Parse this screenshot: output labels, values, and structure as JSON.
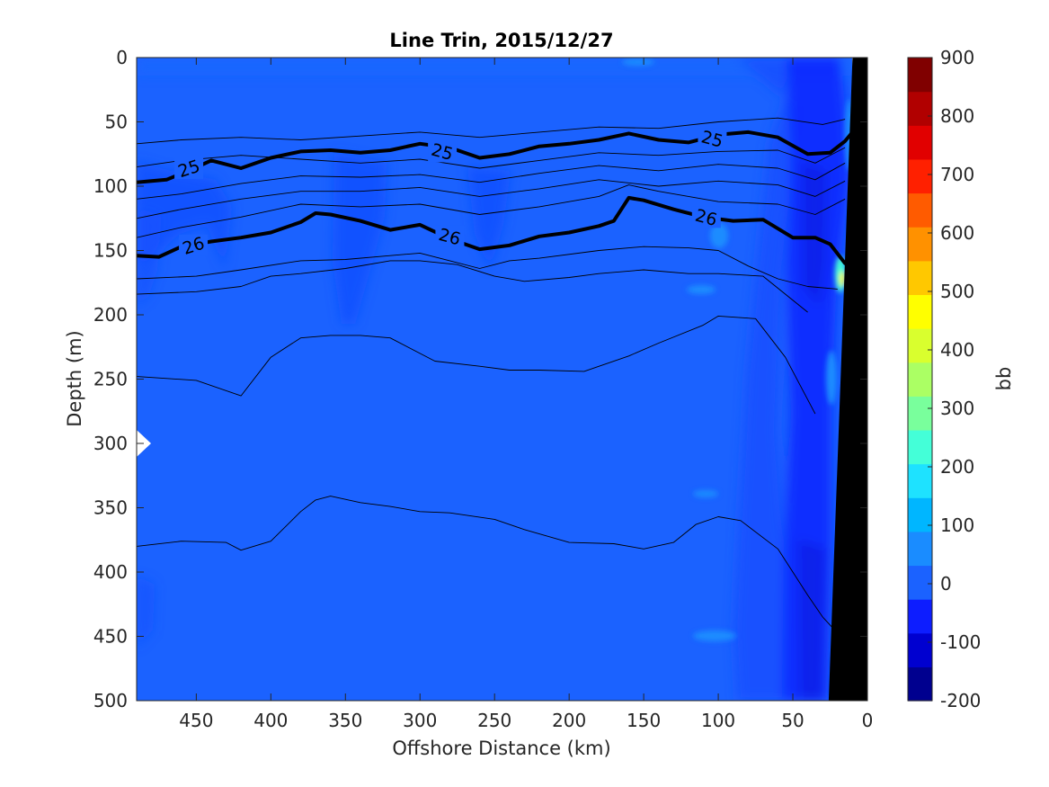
{
  "chart_data": {
    "type": "heatmap",
    "title": "Line Trin, 2015/12/27",
    "xlabel": "Offshore Distance (km)",
    "ylabel": "Depth (m)",
    "xlim": [
      490,
      0
    ],
    "ylim": [
      0,
      500
    ],
    "x_reversed": true,
    "y_reversed": true,
    "xticks": [
      450,
      400,
      350,
      300,
      250,
      200,
      150,
      100,
      50,
      0
    ],
    "yticks": [
      0,
      50,
      100,
      150,
      200,
      250,
      300,
      350,
      400,
      450,
      500
    ],
    "colorbar": {
      "label": "bb",
      "range": [
        -200,
        900
      ],
      "ticks": [
        900,
        800,
        700,
        600,
        500,
        400,
        300,
        200,
        100,
        0,
        -100,
        -200
      ],
      "colors": [
        "#00008f",
        "#0000d0",
        "#0d1dff",
        "#1b62ff",
        "#1a8cff",
        "#00b6ff",
        "#1ee2ff",
        "#44ffd8",
        "#79ff9c",
        "#abff64",
        "#d9ff2e",
        "#ffff00",
        "#ffc800",
        "#ff9100",
        "#ff5b00",
        "#ff2000",
        "#e10000",
        "#b10000",
        "#800000"
      ]
    },
    "background_level_color": "#1b62ff",
    "contours_labeled": [
      {
        "level": "25",
        "points": [
          [
            490,
            97
          ],
          [
            470,
            95
          ],
          [
            455,
            88
          ],
          [
            440,
            80
          ],
          [
            420,
            86
          ],
          [
            400,
            78
          ],
          [
            380,
            73
          ],
          [
            360,
            72
          ],
          [
            340,
            74
          ],
          [
            320,
            72
          ],
          [
            300,
            67
          ],
          [
            280,
            70
          ],
          [
            260,
            78
          ],
          [
            240,
            75
          ],
          [
            220,
            69
          ],
          [
            200,
            67
          ],
          [
            180,
            64
          ],
          [
            160,
            59
          ],
          [
            140,
            64
          ],
          [
            120,
            66
          ],
          [
            100,
            60
          ],
          [
            80,
            58
          ],
          [
            60,
            62
          ],
          [
            40,
            75
          ],
          [
            25,
            74
          ],
          [
            15,
            65
          ],
          [
            10,
            58
          ]
        ],
        "label_positions": [
          [
            455,
            86
          ],
          [
            285,
            73
          ],
          [
            104,
            63
          ]
        ]
      },
      {
        "level": "26",
        "points": [
          [
            490,
            154
          ],
          [
            475,
            155
          ],
          [
            460,
            147
          ],
          [
            440,
            143
          ],
          [
            420,
            140
          ],
          [
            400,
            136
          ],
          [
            380,
            128
          ],
          [
            370,
            121
          ],
          [
            360,
            122
          ],
          [
            340,
            127
          ],
          [
            320,
            134
          ],
          [
            300,
            130
          ],
          [
            280,
            141
          ],
          [
            260,
            149
          ],
          [
            240,
            146
          ],
          [
            220,
            139
          ],
          [
            200,
            136
          ],
          [
            180,
            131
          ],
          [
            170,
            127
          ],
          [
            160,
            109
          ],
          [
            150,
            111
          ],
          [
            130,
            118
          ],
          [
            110,
            124
          ],
          [
            90,
            127
          ],
          [
            70,
            126
          ],
          [
            50,
            140
          ],
          [
            35,
            140
          ],
          [
            25,
            145
          ],
          [
            15,
            160
          ]
        ],
        "label_positions": [
          [
            452,
            146
          ],
          [
            280,
            139
          ],
          [
            108,
            124
          ]
        ]
      }
    ],
    "contours_thin": [
      [
        [
          490,
          67
        ],
        [
          460,
          64
        ],
        [
          420,
          62
        ],
        [
          380,
          64
        ],
        [
          340,
          61
        ],
        [
          300,
          58
        ],
        [
          260,
          62
        ],
        [
          220,
          58
        ],
        [
          180,
          54
        ],
        [
          140,
          55
        ],
        [
          100,
          50
        ],
        [
          60,
          47
        ],
        [
          30,
          52
        ],
        [
          15,
          48
        ]
      ],
      [
        [
          490,
          85
        ],
        [
          460,
          80
        ],
        [
          420,
          76
        ],
        [
          380,
          79
        ],
        [
          340,
          82
        ],
        [
          300,
          79
        ],
        [
          260,
          86
        ],
        [
          220,
          80
        ],
        [
          180,
          74
        ],
        [
          140,
          76
        ],
        [
          100,
          73
        ],
        [
          60,
          72
        ],
        [
          35,
          82
        ],
        [
          15,
          70
        ]
      ],
      [
        [
          490,
          110
        ],
        [
          460,
          106
        ],
        [
          420,
          98
        ],
        [
          380,
          92
        ],
        [
          340,
          93
        ],
        [
          300,
          91
        ],
        [
          260,
          97
        ],
        [
          220,
          90
        ],
        [
          180,
          84
        ],
        [
          140,
          88
        ],
        [
          100,
          83
        ],
        [
          60,
          86
        ],
        [
          35,
          95
        ],
        [
          15,
          82
        ]
      ],
      [
        [
          490,
          125
        ],
        [
          460,
          118
        ],
        [
          420,
          110
        ],
        [
          380,
          104
        ],
        [
          340,
          104
        ],
        [
          300,
          101
        ],
        [
          260,
          108
        ],
        [
          220,
          102
        ],
        [
          180,
          95
        ],
        [
          140,
          100
        ],
        [
          100,
          96
        ],
        [
          60,
          99
        ],
        [
          35,
          108
        ],
        [
          15,
          96
        ]
      ],
      [
        [
          490,
          140
        ],
        [
          460,
          132
        ],
        [
          420,
          124
        ],
        [
          380,
          114
        ],
        [
          340,
          116
        ],
        [
          300,
          114
        ],
        [
          260,
          122
        ],
        [
          220,
          116
        ],
        [
          180,
          108
        ],
        [
          160,
          99
        ],
        [
          140,
          104
        ],
        [
          100,
          112
        ],
        [
          60,
          114
        ],
        [
          35,
          122
        ],
        [
          15,
          110
        ]
      ],
      [
        [
          490,
          172
        ],
        [
          450,
          170
        ],
        [
          420,
          165
        ],
        [
          380,
          158
        ],
        [
          350,
          157
        ],
        [
          320,
          154
        ],
        [
          300,
          152
        ],
        [
          280,
          158
        ],
        [
          260,
          164
        ],
        [
          240,
          158
        ],
        [
          220,
          156
        ],
        [
          180,
          150
        ],
        [
          150,
          147
        ],
        [
          120,
          148
        ],
        [
          100,
          150
        ],
        [
          80,
          162
        ],
        [
          60,
          172
        ],
        [
          40,
          178
        ],
        [
          20,
          180
        ]
      ],
      [
        [
          490,
          184
        ],
        [
          450,
          182
        ],
        [
          420,
          178
        ],
        [
          400,
          170
        ],
        [
          380,
          168
        ],
        [
          350,
          164
        ],
        [
          320,
          158
        ],
        [
          300,
          158
        ],
        [
          275,
          161
        ],
        [
          250,
          170
        ],
        [
          230,
          174
        ],
        [
          200,
          171
        ],
        [
          180,
          168
        ],
        [
          150,
          165
        ],
        [
          120,
          168
        ],
        [
          100,
          168
        ],
        [
          70,
          170
        ],
        [
          40,
          198
        ]
      ],
      [
        [
          490,
          248
        ],
        [
          450,
          251
        ],
        [
          420,
          263
        ],
        [
          400,
          233
        ],
        [
          380,
          218
        ],
        [
          360,
          216
        ],
        [
          340,
          216
        ],
        [
          320,
          218
        ],
        [
          290,
          236
        ],
        [
          260,
          240
        ],
        [
          240,
          243
        ],
        [
          220,
          243
        ],
        [
          190,
          244
        ],
        [
          160,
          232
        ],
        [
          140,
          222
        ],
        [
          110,
          208
        ],
        [
          100,
          201
        ],
        [
          75,
          203
        ],
        [
          55,
          233
        ],
        [
          35,
          277
        ]
      ],
      [
        [
          490,
          380
        ],
        [
          460,
          376
        ],
        [
          430,
          377
        ],
        [
          420,
          383
        ],
        [
          400,
          376
        ],
        [
          380,
          353
        ],
        [
          370,
          344
        ],
        [
          360,
          341
        ],
        [
          340,
          346
        ],
        [
          320,
          349
        ],
        [
          300,
          353
        ],
        [
          280,
          354
        ],
        [
          250,
          359
        ],
        [
          230,
          367
        ],
        [
          200,
          377
        ],
        [
          170,
          378
        ],
        [
          150,
          382
        ],
        [
          130,
          377
        ],
        [
          115,
          363
        ],
        [
          100,
          357
        ],
        [
          85,
          360
        ],
        [
          60,
          382
        ],
        [
          40,
          418
        ],
        [
          30,
          435
        ],
        [
          22,
          445
        ]
      ]
    ],
    "shelf_wedge": [
      [
        0,
        0
      ],
      [
        0,
        500
      ],
      [
        26,
        500
      ],
      [
        10,
        0
      ]
    ]
  }
}
